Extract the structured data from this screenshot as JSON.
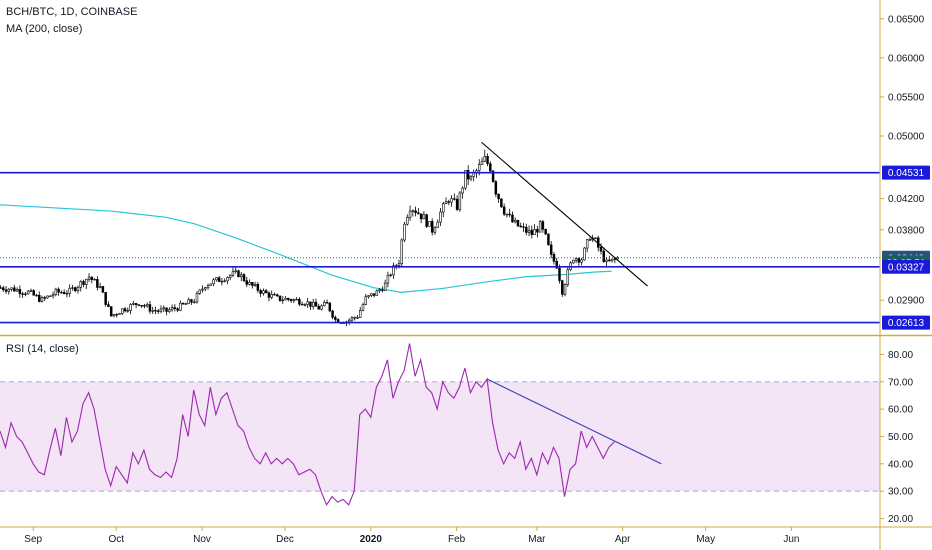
{
  "header": {
    "symbol_line": "BCH/BTC, 1D, COINBASE",
    "ma_line": "MA (200, close)",
    "rsi_line": "RSI (14, close)"
  },
  "colors": {
    "candle": "#000000",
    "ma": "#26c6da",
    "level": "#1a1adb",
    "rsi": "#9c27b0",
    "rsi_band": "#f3e5f5",
    "axis_border": "#d1a93c",
    "trendline_price": "#000000",
    "trendline_rsi": "#3f3fb5",
    "tag_blue": "#1a1adb",
    "tag_green": "#26547c",
    "tag_teal": "#1b5e62"
  },
  "price_axis": {
    "ticks": [
      "0.06500",
      "0.06000",
      "0.05500",
      "0.05000",
      "0.04200",
      "0.03800",
      "0.02900"
    ],
    "tags": [
      {
        "label": "0.04531",
        "value": 0.04531,
        "kind": "level"
      },
      {
        "label": "0.03442",
        "value": 0.03442,
        "kind": "last"
      },
      {
        "label": "02:05:51",
        "value": 0.03385,
        "kind": "timer"
      },
      {
        "label": "0.03327",
        "value": 0.03327,
        "kind": "level"
      },
      {
        "label": "0.02613",
        "value": 0.02613,
        "kind": "level"
      }
    ]
  },
  "rsi_axis": {
    "ticks": [
      "80.00",
      "70.00",
      "60.00",
      "50.00",
      "40.00",
      "30.00",
      "20.00"
    ]
  },
  "time_axis": {
    "labels": [
      {
        "text": "Sep",
        "t": 12
      },
      {
        "text": "Oct",
        "t": 42
      },
      {
        "text": "Nov",
        "t": 73
      },
      {
        "text": "Dec",
        "t": 103
      },
      {
        "text": "2020",
        "t": 134,
        "bold": true
      },
      {
        "text": "Feb",
        "t": 165
      },
      {
        "text": "Mar",
        "t": 194
      },
      {
        "text": "Apr",
        "t": 225
      },
      {
        "text": "May",
        "t": 255
      },
      {
        "text": "Jun",
        "t": 286
      }
    ]
  },
  "chart_data": [
    {
      "type": "candlestick",
      "title": "BCH/BTC, 1D, COINBASE",
      "ylim": [
        0.0248,
        0.0674
      ],
      "xlim": [
        0,
        318
      ],
      "horizontal_levels": [
        0.04531,
        0.03327,
        0.02613
      ],
      "last_price": 0.03442,
      "trendline": {
        "from": [
          174,
          0.0492
        ],
        "to": [
          234,
          0.0308
        ]
      },
      "close_anchors": [
        [
          0,
          0.0306
        ],
        [
          5,
          0.0304
        ],
        [
          10,
          0.03
        ],
        [
          15,
          0.029
        ],
        [
          20,
          0.03
        ],
        [
          25,
          0.0301
        ],
        [
          32,
          0.032
        ],
        [
          36,
          0.0306
        ],
        [
          40,
          0.027
        ],
        [
          44,
          0.0278
        ],
        [
          50,
          0.0287
        ],
        [
          55,
          0.0277
        ],
        [
          60,
          0.0276
        ],
        [
          65,
          0.0282
        ],
        [
          70,
          0.029
        ],
        [
          74,
          0.031
        ],
        [
          78,
          0.0315
        ],
        [
          83,
          0.0322
        ],
        [
          86,
          0.0324
        ],
        [
          90,
          0.031
        ],
        [
          95,
          0.03
        ],
        [
          100,
          0.0292
        ],
        [
          105,
          0.0291
        ],
        [
          110,
          0.0288
        ],
        [
          115,
          0.028
        ],
        [
          118,
          0.0285
        ],
        [
          121,
          0.0265
        ],
        [
          125,
          0.0263
        ],
        [
          129,
          0.027
        ],
        [
          132,
          0.0292
        ],
        [
          136,
          0.03
        ],
        [
          139,
          0.031
        ],
        [
          141,
          0.0325
        ],
        [
          144,
          0.034
        ],
        [
          146,
          0.0392
        ],
        [
          148,
          0.041
        ],
        [
          150,
          0.0405
        ],
        [
          153,
          0.0395
        ],
        [
          156,
          0.038
        ],
        [
          159,
          0.0402
        ],
        [
          162,
          0.042
        ],
        [
          165,
          0.041
        ],
        [
          168,
          0.045
        ],
        [
          170,
          0.0445
        ],
        [
          172,
          0.0455
        ],
        [
          175,
          0.047
        ],
        [
          177,
          0.046
        ],
        [
          179,
          0.043
        ],
        [
          182,
          0.0405
        ],
        [
          185,
          0.039
        ],
        [
          189,
          0.038
        ],
        [
          192,
          0.0375
        ],
        [
          195,
          0.0385
        ],
        [
          197,
          0.037
        ],
        [
          199,
          0.0345
        ],
        [
          201,
          0.0335
        ],
        [
          203,
          0.0302
        ],
        [
          205,
          0.0325
        ],
        [
          207,
          0.0345
        ],
        [
          210,
          0.0343
        ],
        [
          213,
          0.0372
        ],
        [
          215,
          0.0365
        ],
        [
          217,
          0.035
        ],
        [
          219,
          0.0337
        ],
        [
          221,
          0.034
        ],
        [
          223,
          0.0344
        ]
      ],
      "ma_series": {
        "name": "MA (200, close)",
        "points": [
          [
            0,
            0.0412
          ],
          [
            20,
            0.0408
          ],
          [
            40,
            0.0404
          ],
          [
            60,
            0.0396
          ],
          [
            70,
            0.0388
          ],
          [
            85,
            0.037
          ],
          [
            100,
            0.035
          ],
          [
            120,
            0.0322
          ],
          [
            135,
            0.0306
          ],
          [
            145,
            0.03
          ],
          [
            160,
            0.0305
          ],
          [
            175,
            0.0313
          ],
          [
            190,
            0.032
          ],
          [
            205,
            0.0323
          ],
          [
            215,
            0.0326
          ],
          [
            221,
            0.0327
          ]
        ]
      }
    },
    {
      "type": "line",
      "title": "RSI (14, close)",
      "ylim": [
        18,
        86
      ],
      "xlim": [
        0,
        318
      ],
      "bands": {
        "upper": 70,
        "lower": 30
      },
      "trendline": {
        "from": [
          176,
          71
        ],
        "to": [
          239,
          40
        ]
      },
      "series": [
        {
          "name": "RSI (14, close)",
          "points": [
            [
              0,
              52
            ],
            [
              2,
              46
            ],
            [
              4,
              55
            ],
            [
              6,
              50
            ],
            [
              8,
              48
            ],
            [
              10,
              44
            ],
            [
              12,
              40
            ],
            [
              14,
              37
            ],
            [
              16,
              36
            ],
            [
              18,
              45
            ],
            [
              20,
              53
            ],
            [
              22,
              43
            ],
            [
              24,
              57
            ],
            [
              26,
              48
            ],
            [
              28,
              52
            ],
            [
              30,
              62
            ],
            [
              32,
              66
            ],
            [
              34,
              60
            ],
            [
              36,
              49
            ],
            [
              38,
              38
            ],
            [
              40,
              32
            ],
            [
              42,
              39
            ],
            [
              44,
              36
            ],
            [
              46,
              33
            ],
            [
              48,
              44
            ],
            [
              50,
              40
            ],
            [
              52,
              45
            ],
            [
              54,
              38
            ],
            [
              56,
              36
            ],
            [
              58,
              35
            ],
            [
              60,
              37
            ],
            [
              62,
              35
            ],
            [
              64,
              42
            ],
            [
              66,
              58
            ],
            [
              68,
              50
            ],
            [
              70,
              67
            ],
            [
              72,
              58
            ],
            [
              74,
              54
            ],
            [
              76,
              68
            ],
            [
              78,
              58
            ],
            [
              80,
              64
            ],
            [
              82,
              66
            ],
            [
              84,
              60
            ],
            [
              86,
              54
            ],
            [
              88,
              52
            ],
            [
              90,
              46
            ],
            [
              92,
              42
            ],
            [
              94,
              40
            ],
            [
              96,
              44
            ],
            [
              98,
              40
            ],
            [
              100,
              42
            ],
            [
              102,
              40
            ],
            [
              104,
              42
            ],
            [
              106,
              40
            ],
            [
              108,
              36
            ],
            [
              110,
              37
            ],
            [
              112,
              38
            ],
            [
              114,
              36
            ],
            [
              116,
              30
            ],
            [
              118,
              25
            ],
            [
              120,
              28
            ],
            [
              122,
              26
            ],
            [
              124,
              27
            ],
            [
              126,
              25
            ],
            [
              128,
              30
            ],
            [
              130,
              58
            ],
            [
              132,
              60
            ],
            [
              134,
              57
            ],
            [
              136,
              68
            ],
            [
              138,
              72
            ],
            [
              140,
              78
            ],
            [
              142,
              64
            ],
            [
              144,
              70
            ],
            [
              146,
              74
            ],
            [
              148,
              84
            ],
            [
              150,
              72
            ],
            [
              152,
              78
            ],
            [
              154,
              68
            ],
            [
              156,
              66
            ],
            [
              158,
              60
            ],
            [
              160,
              70
            ],
            [
              162,
              66
            ],
            [
              164,
              64
            ],
            [
              166,
              68
            ],
            [
              168,
              75
            ],
            [
              170,
              66
            ],
            [
              172,
              70
            ],
            [
              174,
              68
            ],
            [
              176,
              71
            ],
            [
              178,
              55
            ],
            [
              180,
              45
            ],
            [
              182,
              40
            ],
            [
              184,
              44
            ],
            [
              186,
              42
            ],
            [
              188,
              48
            ],
            [
              190,
              38
            ],
            [
              192,
              42
            ],
            [
              194,
              36
            ],
            [
              196,
              44
            ],
            [
              198,
              40
            ],
            [
              200,
              46
            ],
            [
              202,
              42
            ],
            [
              204,
              28
            ],
            [
              206,
              38
            ],
            [
              208,
              40
            ],
            [
              210,
              52
            ],
            [
              212,
              46
            ],
            [
              214,
              50
            ],
            [
              216,
              46
            ],
            [
              218,
              42
            ],
            [
              220,
              46
            ],
            [
              222,
              48
            ]
          ]
        }
      ]
    }
  ]
}
